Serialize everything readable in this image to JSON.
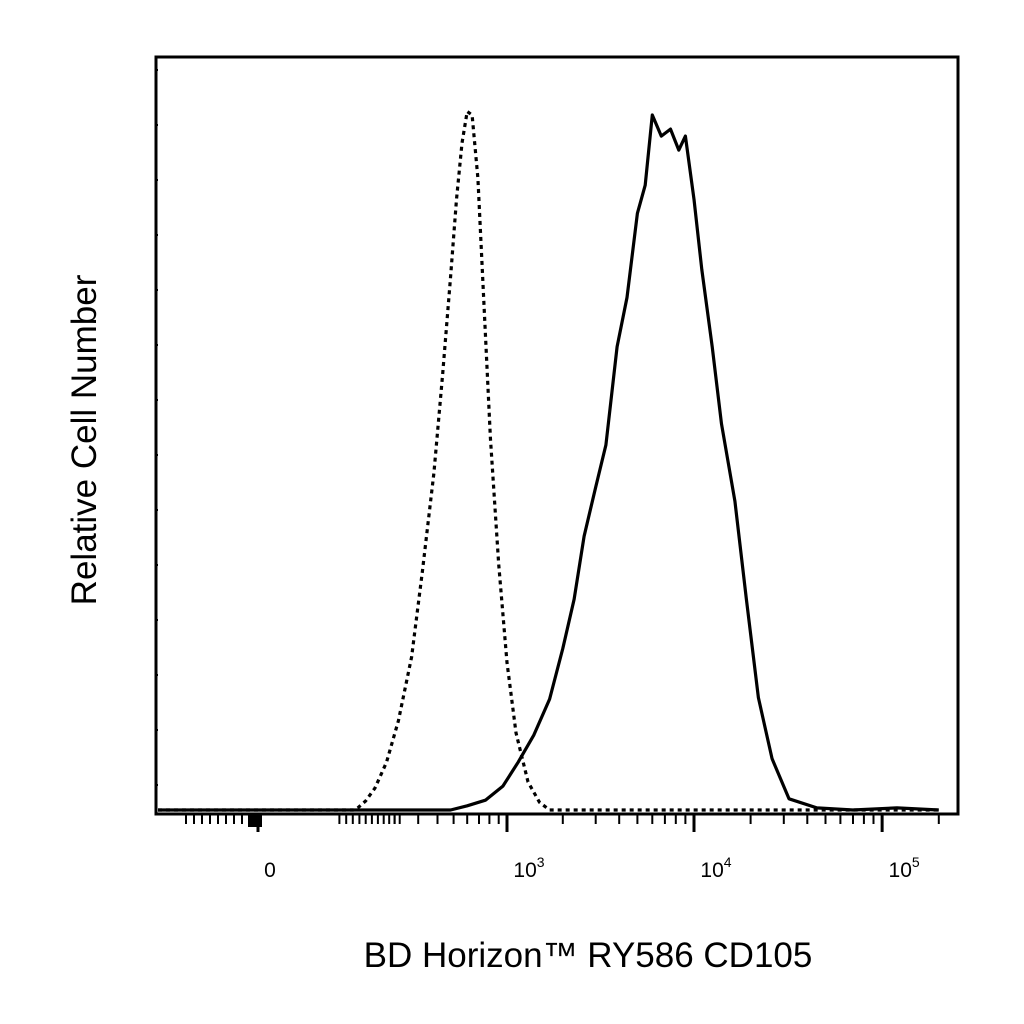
{
  "chart_data": {
    "type": "line",
    "title": "",
    "xlabel": "BD Horizon™ RY586 CD105",
    "ylabel": "Relative Cell Number",
    "x_scale": "biexponential",
    "xlim": [
      -250,
      200000
    ],
    "ylim": [
      0,
      1.0
    ],
    "y_tick_labels": false,
    "grid": false,
    "legend": "none",
    "x_ticks": [
      {
        "value": 0,
        "base": "0",
        "exponent": ""
      },
      {
        "value": 1000,
        "base": "10",
        "exponent": "3"
      },
      {
        "value": 10000,
        "base": "10",
        "exponent": "4"
      },
      {
        "value": 100000,
        "base": "10",
        "exponent": "5"
      }
    ],
    "series": [
      {
        "style": "dotted",
        "color": "#000000",
        "x": [
          -250,
          62,
          75,
          100,
          130,
          170,
          215,
          270,
          320,
          380,
          430,
          480,
          520,
          560,
          600,
          640,
          690,
          740,
          810,
          900,
          1000,
          1120,
          1300,
          1500,
          1700,
          2000,
          2500,
          3000,
          5000,
          10000,
          30000,
          70000,
          200000
        ],
        "y": [
          0,
          0,
          0.003,
          0.013,
          0.031,
          0.068,
          0.127,
          0.218,
          0.34,
          0.48,
          0.62,
          0.76,
          0.87,
          0.95,
          0.995,
          0.99,
          0.9,
          0.74,
          0.53,
          0.35,
          0.21,
          0.11,
          0.04,
          0.011,
          0,
          0,
          0,
          0,
          0,
          0,
          0,
          0,
          0
        ]
      },
      {
        "style": "solid",
        "color": "#000000",
        "x": [
          -250,
          200,
          480,
          600,
          760,
          950,
          1150,
          1400,
          1700,
          2000,
          2300,
          2600,
          3000,
          3400,
          3900,
          4400,
          5000,
          5500,
          6000,
          6700,
          7500,
          8300,
          9000,
          10000,
          11000,
          12500,
          14000,
          16500,
          19000,
          22000,
          26000,
          32000,
          45000,
          70000,
          120000,
          200000
        ],
        "y": [
          0,
          0,
          0,
          0.006,
          0.014,
          0.034,
          0.068,
          0.107,
          0.158,
          0.23,
          0.3,
          0.39,
          0.46,
          0.52,
          0.66,
          0.73,
          0.85,
          0.89,
          0.99,
          0.96,
          0.97,
          0.94,
          0.96,
          0.87,
          0.77,
          0.66,
          0.55,
          0.44,
          0.3,
          0.16,
          0.073,
          0.016,
          0.003,
          0,
          0.003,
          0
        ]
      }
    ]
  }
}
